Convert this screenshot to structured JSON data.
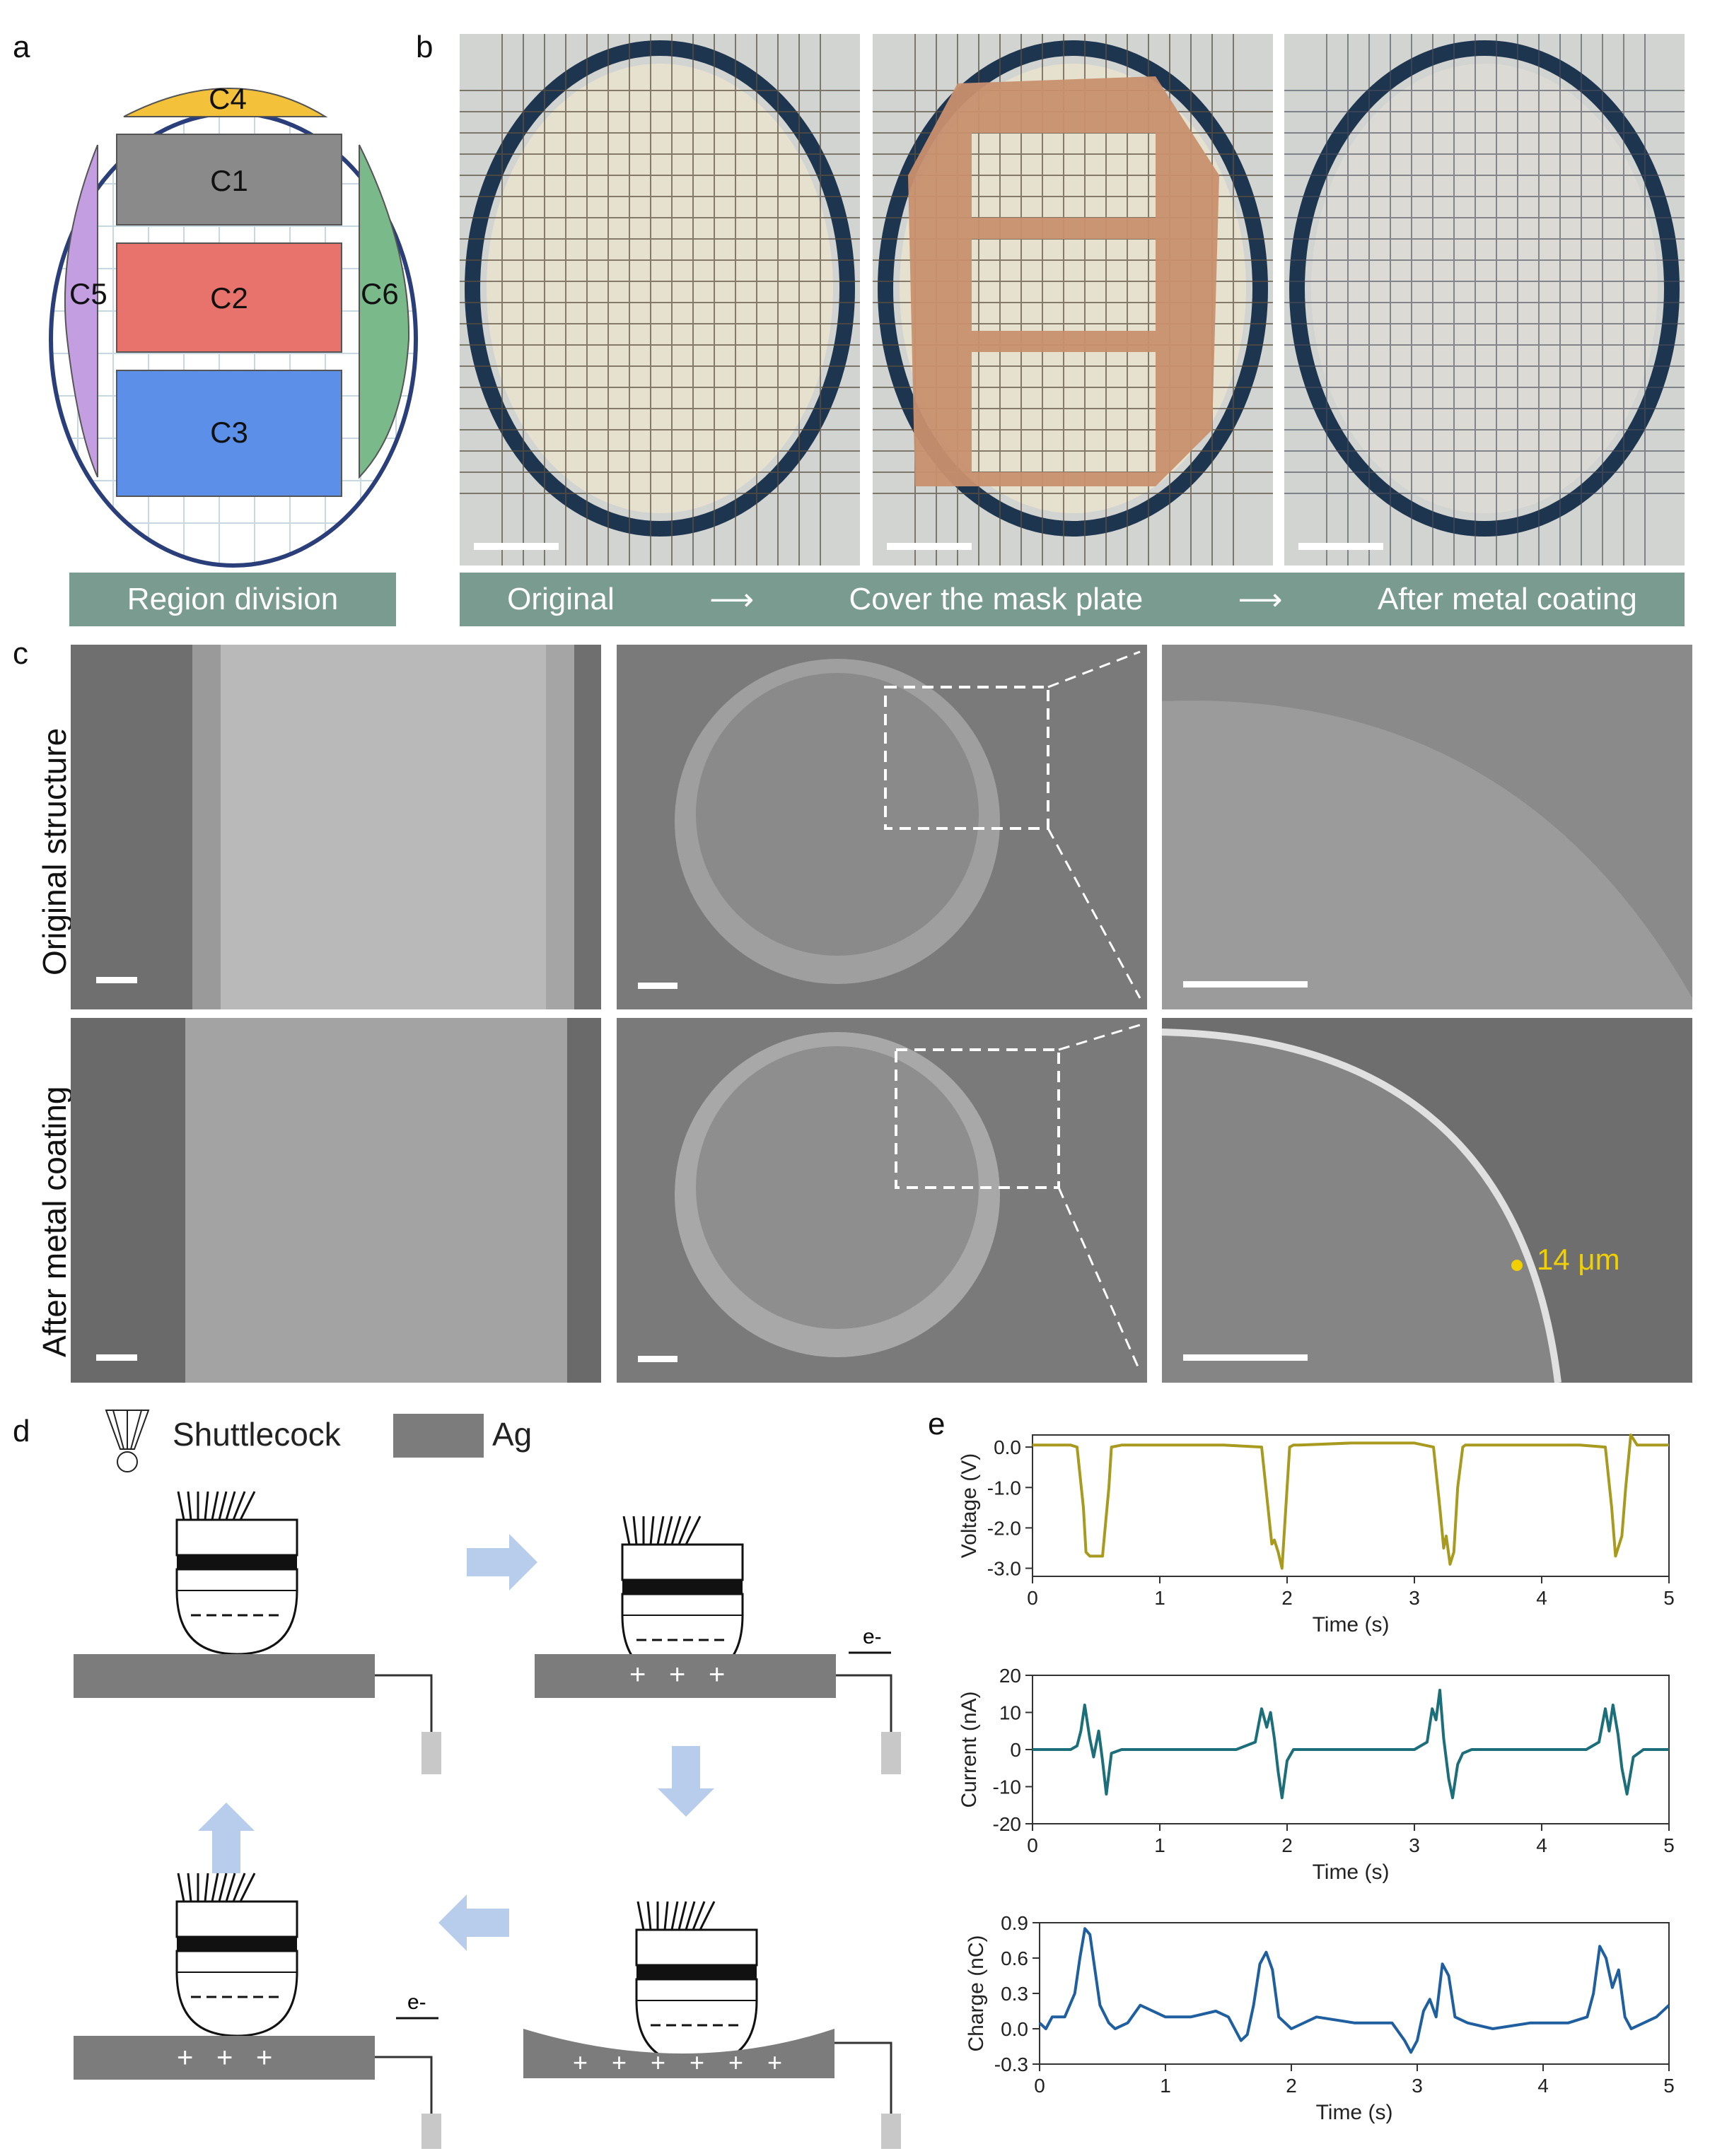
{
  "panel_labels": {
    "a": "a",
    "b": "b",
    "c": "c",
    "d": "d",
    "e": "e"
  },
  "panel_a": {
    "regions": {
      "c1": "C1",
      "c2": "C2",
      "c3": "C3",
      "c4": "C4",
      "c5": "C5",
      "c6": "C6"
    },
    "region_colors": {
      "c1": "#8a8a8a",
      "c2": "#e8736c",
      "c3": "#5b8fe8",
      "c4": "#f3c23a",
      "c5": "#c39ee0",
      "c6": "#79b98a"
    },
    "caption": "Region division"
  },
  "panel_b": {
    "steps": [
      "Original",
      "Cover the mask plate",
      "After metal coating"
    ]
  },
  "panel_c": {
    "row_labels": [
      "Original structure",
      "After metal coating"
    ],
    "thickness_label": "14 μm"
  },
  "panel_d": {
    "legend": {
      "shuttlecock": "Shuttlecock",
      "ag": "Ag"
    },
    "electron": "e-",
    "plus": "+"
  },
  "chart_data": [
    {
      "type": "line",
      "xlabel": "Time (s)",
      "ylabel": "Voltage (V)",
      "xlim": [
        0,
        5
      ],
      "ylim": [
        -3.2,
        0.3
      ],
      "xticks": [
        0,
        1,
        2,
        3,
        4,
        5
      ],
      "yticks": [
        0,
        -1,
        -2,
        -3
      ],
      "color": "#a89a1e",
      "x": [
        0,
        0.3,
        0.35,
        0.4,
        0.42,
        0.45,
        0.5,
        0.55,
        0.6,
        0.62,
        0.7,
        1.0,
        1.5,
        1.8,
        1.85,
        1.88,
        1.9,
        1.93,
        1.96,
        2.0,
        2.02,
        2.05,
        2.1,
        2.5,
        3.0,
        3.15,
        3.2,
        3.23,
        3.25,
        3.28,
        3.31,
        3.34,
        3.38,
        3.4,
        3.45,
        3.8,
        4.3,
        4.5,
        4.55,
        4.58,
        4.6,
        4.63,
        4.66,
        4.7,
        4.72,
        4.75,
        5.0
      ],
      "y": [
        0.05,
        0.05,
        0.0,
        -1.5,
        -2.6,
        -2.7,
        -2.7,
        -2.7,
        -1.0,
        0.0,
        0.05,
        0.05,
        0.05,
        0.0,
        -1.5,
        -2.4,
        -2.3,
        -2.6,
        -3.0,
        -1.0,
        0.0,
        0.05,
        0.05,
        0.1,
        0.1,
        0.0,
        -1.5,
        -2.5,
        -2.2,
        -2.9,
        -2.6,
        -1.0,
        0.0,
        0.05,
        0.05,
        0.05,
        0.05,
        0.0,
        -1.5,
        -2.7,
        -2.5,
        -2.2,
        -1.0,
        0.3,
        0.2,
        0.05,
        0.05
      ]
    },
    {
      "type": "line",
      "xlabel": "Time (s)",
      "ylabel": "Current (nA)",
      "xlim": [
        0,
        5
      ],
      "ylim": [
        -20,
        20
      ],
      "xticks": [
        0,
        1,
        2,
        3,
        4,
        5
      ],
      "yticks": [
        20,
        10,
        0,
        -10,
        -20
      ],
      "color": "#1c6e7a",
      "x": [
        0,
        0.3,
        0.35,
        0.38,
        0.41,
        0.45,
        0.48,
        0.52,
        0.55,
        0.58,
        0.62,
        0.7,
        1.0,
        1.6,
        1.75,
        1.8,
        1.84,
        1.87,
        1.9,
        1.93,
        1.96,
        2.0,
        2.05,
        2.1,
        2.6,
        3.0,
        3.1,
        3.14,
        3.17,
        3.2,
        3.23,
        3.27,
        3.3,
        3.34,
        3.38,
        3.45,
        3.9,
        4.35,
        4.45,
        4.5,
        4.53,
        4.56,
        4.6,
        4.63,
        4.67,
        4.72,
        4.8,
        5.0
      ],
      "y": [
        0,
        0,
        1,
        5,
        12,
        3,
        -2,
        5,
        -3,
        -12,
        -1,
        0,
        0,
        0,
        2,
        11,
        6,
        10,
        3,
        -6,
        -13,
        -3,
        0,
        0,
        0,
        0,
        2,
        11,
        8,
        16,
        3,
        -8,
        -13,
        -4,
        -1,
        0,
        0,
        0,
        2,
        11,
        5,
        12,
        4,
        -5,
        -12,
        -2,
        0,
        0
      ]
    },
    {
      "type": "line",
      "xlabel": "Time (s)",
      "ylabel": "Charge (nC)",
      "xlim": [
        0,
        5
      ],
      "ylim": [
        -0.3,
        0.9
      ],
      "xticks": [
        0,
        1,
        2,
        3,
        4,
        5
      ],
      "yticks": [
        0.9,
        0.6,
        0.3,
        0.0,
        -0.3
      ],
      "color": "#1f5fa0",
      "x": [
        0,
        0.05,
        0.1,
        0.2,
        0.28,
        0.32,
        0.36,
        0.4,
        0.44,
        0.48,
        0.55,
        0.6,
        0.7,
        0.8,
        1.0,
        1.2,
        1.4,
        1.5,
        1.6,
        1.65,
        1.7,
        1.75,
        1.8,
        1.85,
        1.9,
        2.0,
        2.2,
        2.5,
        2.8,
        2.9,
        2.95,
        3.0,
        3.05,
        3.1,
        3.15,
        3.2,
        3.25,
        3.3,
        3.4,
        3.6,
        3.9,
        4.2,
        4.35,
        4.4,
        4.45,
        4.5,
        4.55,
        4.6,
        4.65,
        4.7,
        4.8,
        4.9,
        5.0
      ],
      "y": [
        0.05,
        0.0,
        0.1,
        0.1,
        0.3,
        0.6,
        0.85,
        0.8,
        0.5,
        0.2,
        0.05,
        0.0,
        0.05,
        0.2,
        0.1,
        0.1,
        0.15,
        0.1,
        -0.1,
        -0.05,
        0.2,
        0.55,
        0.65,
        0.5,
        0.1,
        0.0,
        0.1,
        0.05,
        0.05,
        -0.1,
        -0.2,
        -0.1,
        0.15,
        0.25,
        0.1,
        0.55,
        0.45,
        0.1,
        0.05,
        0.0,
        0.05,
        0.05,
        0.1,
        0.3,
        0.7,
        0.6,
        0.35,
        0.5,
        0.1,
        0.0,
        0.05,
        0.1,
        0.2
      ]
    }
  ]
}
